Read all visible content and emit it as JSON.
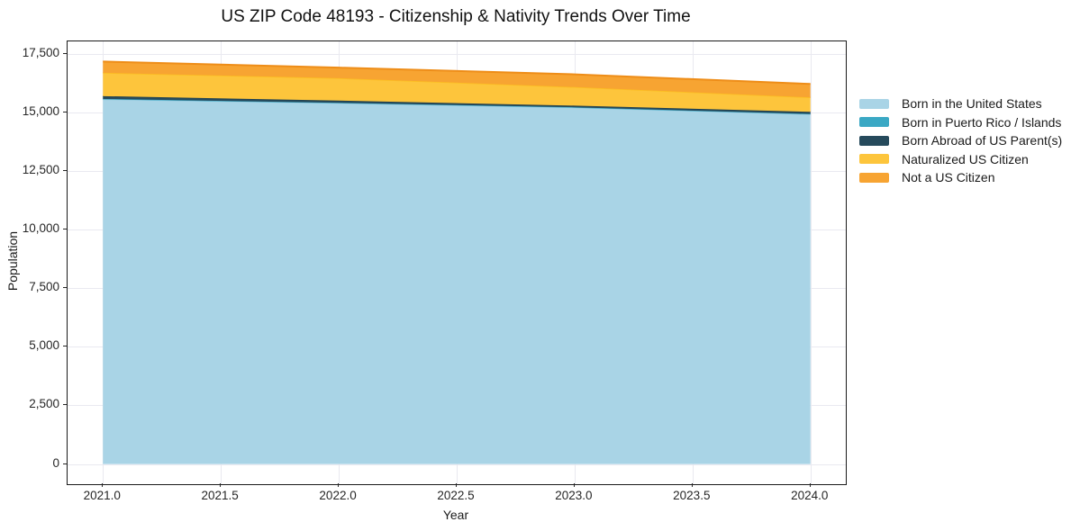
{
  "chart_data": {
    "type": "area",
    "stacked": true,
    "title": "US ZIP Code 48193 - Citizenship & Nativity Trends Over Time",
    "xlabel": "Year",
    "ylabel": "Population",
    "x": [
      2021,
      2022,
      2023,
      2024
    ],
    "series": [
      {
        "name": "Born in the United States",
        "color": "#a9d4e6",
        "edge": "#8fc8de",
        "edge_width": 1.5,
        "values": [
          15560,
          15400,
          15210,
          14925
        ]
      },
      {
        "name": "Born in Puerto Rico / Islands",
        "color": "#3aa8c4",
        "edge": "#3aa8c4",
        "edge_width": 1,
        "values": [
          15,
          10,
          10,
          10
        ]
      },
      {
        "name": "Born Abroad of US Parent(s)",
        "color": "#264a5c",
        "edge": "#20404f",
        "edge_width": 1.5,
        "values": [
          120,
          95,
          70,
          90
        ]
      },
      {
        "name": "Naturalized US Citizen",
        "color": "#fdc53c",
        "edge": "#fcbe20",
        "edge_width": 1.5,
        "values": [
          995,
          955,
          790,
          615
        ]
      },
      {
        "name": "Not a US Citizen",
        "color": "#f7a432",
        "edge": "#ee8d18",
        "edge_width": 2,
        "values": [
          480,
          450,
          545,
          575
        ]
      }
    ],
    "x_ticks": [
      2021.0,
      2021.5,
      2022.0,
      2022.5,
      2023.0,
      2023.5,
      2024.0
    ],
    "x_tick_labels": [
      "2021.0",
      "2021.5",
      "2022.0",
      "2022.5",
      "2023.0",
      "2023.5",
      "2024.0"
    ],
    "y_ticks": [
      0,
      2500,
      5000,
      7500,
      10000,
      12500,
      15000,
      17500
    ],
    "y_tick_labels": [
      "0",
      "2,500",
      "5,000",
      "7,500",
      "10,000",
      "12,500",
      "15,000",
      "17,500"
    ],
    "xlim": [
      2020.85,
      2024.15
    ],
    "ylim": [
      -860,
      18030
    ],
    "grid": true,
    "legend_position": "outside-right-top",
    "background_color": "#ffffff",
    "grid_color": "#e9e9f0",
    "spine_color": "#1a1a1a"
  }
}
